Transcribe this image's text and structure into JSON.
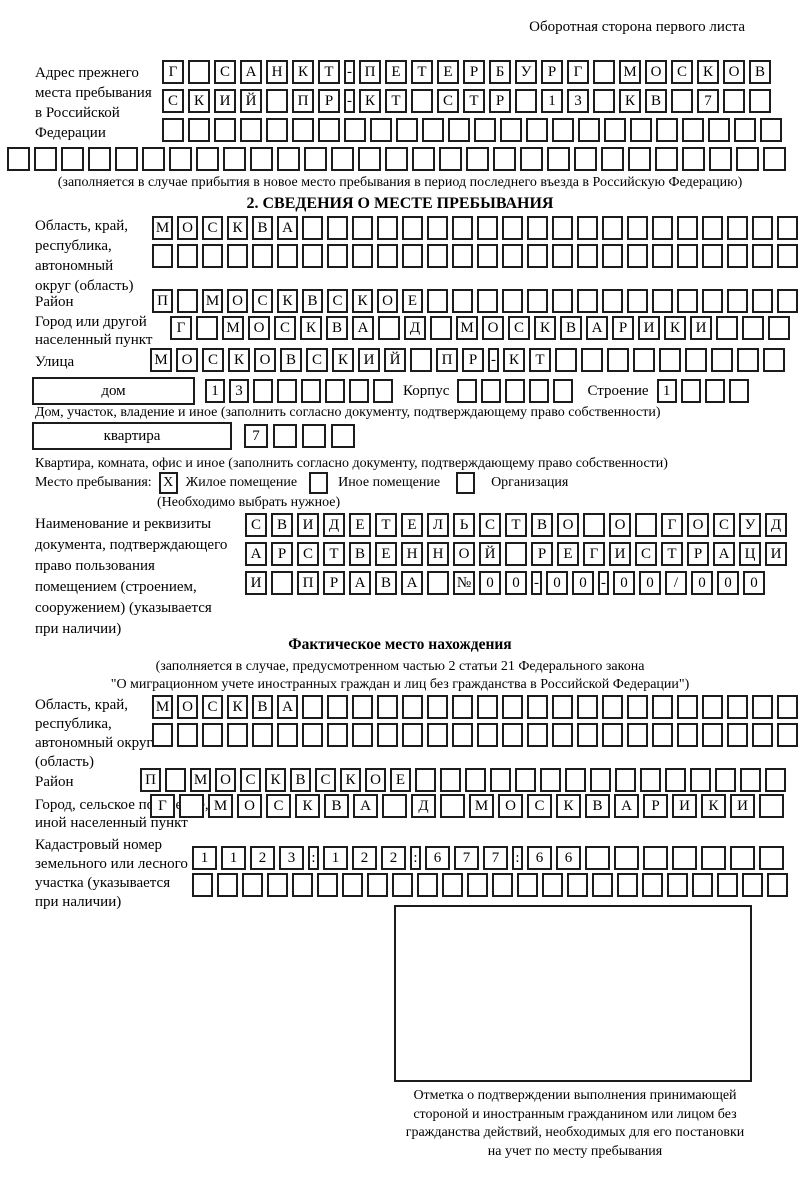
{
  "page": {
    "header_note": "Оборотная сторона первого листа"
  },
  "prev_address": {
    "label_lines": [
      "Адрес прежнего",
      "места пребывания",
      "в Российской",
      "Федерации"
    ],
    "rows": [
      "Г САНКТ-ПЕТЕРБУРГ МОСКОВ",
      "СКИЙ ПР-КТ СТР 13 КВ 7  ",
      "                        "
    ],
    "wide_row": "                             ",
    "caption": "(заполняется в случае прибытия в новое место пребывания в период последнего въезда в Российскую Федерацию)"
  },
  "section2": {
    "title": "2. СВЕДЕНИЯ О МЕСТЕ ПРЕБЫВАНИЯ",
    "region": {
      "label_lines": [
        "Область, край,",
        "республика,",
        "автономный",
        "округ (область)"
      ],
      "rows": [
        "МОСКВА                    ",
        "                          "
      ]
    },
    "district": {
      "label": "Район",
      "row": "П МОСКВСКОЕ               "
    },
    "city": {
      "label_lines": [
        "Город или другой",
        "населенный пункт"
      ],
      "row": "Г МОСКВА Д МОСКВАРИКИ   "
    },
    "street": {
      "label": "Улица",
      "row": "МОСКОВСКИЙ ПР-КТ         "
    },
    "house": {
      "box_label": "дом",
      "cells": "13      ",
      "korpus_label": "Корпус",
      "korpus_cells": "     ",
      "stroenie_label": "Строение",
      "stroenie_cells": "1   ",
      "caption": "Дом, участок, владение и иное (заполнить согласно документу, подтверждающему право собственности)"
    },
    "apartment": {
      "box_label": "квартира",
      "cells": "7   ",
      "caption": "Квартира, комната, офис и иное (заполнить согласно документу, подтверждающему право собственности)"
    },
    "stay_type": {
      "label": "Место пребывания:",
      "options": [
        {
          "label": "Жилое помещение",
          "mark": "X"
        },
        {
          "label": "Иное помещение",
          "mark": ""
        },
        {
          "label": "Организация",
          "mark": ""
        }
      ],
      "hint": "(Необходимо выбрать нужное)"
    },
    "document": {
      "label_lines": [
        "Наименование и реквизиты",
        "документа, подтверждающего",
        "право пользования",
        "помещением (строением,",
        "сооружением) (указывается",
        "при наличии)"
      ],
      "rows": [
        "СВИДЕТЕЛЬСТВО О ГОСУД",
        "АРСТВЕННОЙ РЕГИСТРАЦИ",
        "И ПРАВА №00-00-00/000"
      ]
    }
  },
  "actual_location": {
    "title": "Фактическое место нахождения",
    "subtitle_lines": [
      "(заполняется в случае, предусмотренном частью 2 статьи 21 Федерального закона",
      "\"О миграционном учете иностранных граждан и лиц без гражданства в Российской Федерации\")"
    ],
    "region": {
      "label_lines": [
        "Область, край,",
        "республика,",
        "автономный округ",
        "(область)"
      ],
      "rows": [
        "МОСКВА                    ",
        "                          "
      ]
    },
    "district": {
      "label": "Район",
      "row": "П МОСКВСКОЕ               "
    },
    "city": {
      "label_lines": [
        "Город, сельское поселение,",
        "иной населенный пункт"
      ],
      "row": "Г МОСКВА Д МОСКВАРИКИ "
    },
    "cadastral": {
      "label_lines": [
        "Кадастровый номер",
        "земельного или лесного",
        "участка (указывается",
        "при наличии)"
      ],
      "rows": [
        "1123:122:677:66       ",
        "                        "
      ]
    },
    "mark_caption_lines": [
      "Отметка о подтверждении выполнения принимающей",
      "стороной и иностранным гражданином или лицом без",
      "гражданства действий, необходимых для его постановки",
      "на учет по месту пребывания"
    ]
  }
}
